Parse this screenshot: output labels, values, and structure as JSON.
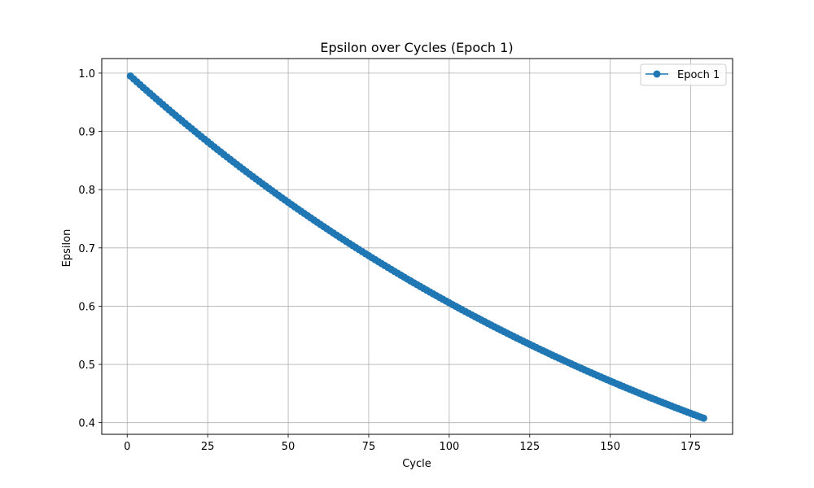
{
  "chart_data": {
    "type": "line",
    "title": "Epsilon over Cycles (Epoch 1)",
    "xlabel": "Cycle",
    "ylabel": "Epsilon",
    "xlim": [
      -7.9,
      188
    ],
    "ylim": [
      0.38,
      1.025
    ],
    "xticks": [
      "0",
      "25",
      "50",
      "75",
      "100",
      "125",
      "150",
      "175"
    ],
    "xtick_values": [
      0,
      25,
      50,
      75,
      100,
      125,
      150,
      175
    ],
    "yticks": [
      "0.4",
      "0.5",
      "0.6",
      "0.7",
      "0.8",
      "0.9",
      "1.0"
    ],
    "ytick_values": [
      0.4,
      0.5,
      0.6,
      0.7,
      0.8,
      0.9,
      1.0
    ],
    "grid": true,
    "legend_position": "top-right",
    "series": [
      {
        "name": "Epoch 1",
        "color": "#1f77b4",
        "marker": "circle",
        "x_start": 1,
        "x_end": 179,
        "y_start": 0.995,
        "decay_per_cycle": 0.995
      }
    ]
  }
}
